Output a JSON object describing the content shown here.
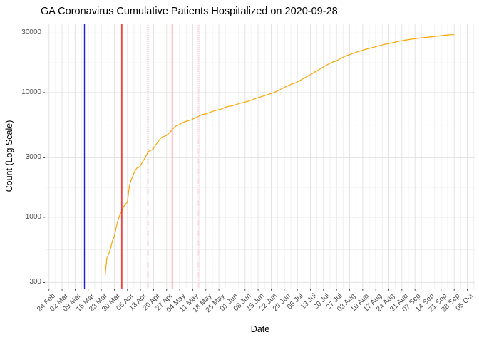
{
  "chart_data": {
    "type": "line",
    "title": "GA Coronavirus Cumulative Patients Hospitalized on 2020-09-28",
    "xlabel": "Date",
    "ylabel": "Count (Log Scale)",
    "y_scale": "log10",
    "grid": true,
    "legend": false,
    "ylim": [
      268,
      35800
    ],
    "xlim": [
      "2020-02-22",
      "2020-10-09"
    ],
    "y_ticks": [
      {
        "label": "300",
        "value": 300
      },
      {
        "label": "1000",
        "value": 1000
      },
      {
        "label": "3000",
        "value": 3000
      },
      {
        "label": "10000",
        "value": 10000
      },
      {
        "label": "30000",
        "value": 30000
      }
    ],
    "y_minor_ticks": [
      548,
      1732,
      5477,
      17321
    ],
    "x_ticks": [
      {
        "label": "24 Feb",
        "date": "2020-02-24"
      },
      {
        "label": "02 Mar",
        "date": "2020-03-02"
      },
      {
        "label": "09 Mar",
        "date": "2020-03-09"
      },
      {
        "label": "16 Mar",
        "date": "2020-03-16"
      },
      {
        "label": "23 Mar",
        "date": "2020-03-23"
      },
      {
        "label": "30 Mar",
        "date": "2020-03-30"
      },
      {
        "label": "06 Apr",
        "date": "2020-04-06"
      },
      {
        "label": "13 Apr",
        "date": "2020-04-13"
      },
      {
        "label": "20 Apr",
        "date": "2020-04-20"
      },
      {
        "label": "27 Apr",
        "date": "2020-04-27"
      },
      {
        "label": "04 May",
        "date": "2020-05-04"
      },
      {
        "label": "11 May",
        "date": "2020-05-11"
      },
      {
        "label": "18 May",
        "date": "2020-05-18"
      },
      {
        "label": "25 May",
        "date": "2020-05-25"
      },
      {
        "label": "01 Jun",
        "date": "2020-06-01"
      },
      {
        "label": "08 Jun",
        "date": "2020-06-08"
      },
      {
        "label": "15 Jun",
        "date": "2020-06-15"
      },
      {
        "label": "22 Jun",
        "date": "2020-06-22"
      },
      {
        "label": "29 Jun",
        "date": "2020-06-29"
      },
      {
        "label": "06 Jul",
        "date": "2020-07-06"
      },
      {
        "label": "13 Jul",
        "date": "2020-07-13"
      },
      {
        "label": "20 Jul",
        "date": "2020-07-20"
      },
      {
        "label": "27 Jul",
        "date": "2020-07-27"
      },
      {
        "label": "03 Aug",
        "date": "2020-08-03"
      },
      {
        "label": "10 Aug",
        "date": "2020-08-10"
      },
      {
        "label": "17 Aug",
        "date": "2020-08-17"
      },
      {
        "label": "24 Aug",
        "date": "2020-08-24"
      },
      {
        "label": "31 Aug",
        "date": "2020-08-31"
      },
      {
        "label": "07 Sep",
        "date": "2020-09-07"
      },
      {
        "label": "14 Sep",
        "date": "2020-09-14"
      },
      {
        "label": "21 Sep",
        "date": "2020-09-21"
      },
      {
        "label": "28 Sep",
        "date": "2020-09-28"
      },
      {
        "label": "05 Oct",
        "date": "2020-10-05"
      }
    ],
    "vlines": [
      {
        "date": "2020-03-14",
        "color": "#2020C8",
        "style": "solid",
        "width": 1.4
      },
      {
        "date": "2020-04-03",
        "color": "#EE1111",
        "style": "solid",
        "width": 1.4
      },
      {
        "date": "2020-04-17",
        "color": "#EE1111",
        "style": "dotted",
        "width": 1.4
      },
      {
        "date": "2020-04-30",
        "color": "#FFB0BE",
        "style": "solid",
        "width": 1.9
      },
      {
        "date": "2020-05-14",
        "color": "#FFD2DB",
        "style": "dotted",
        "width": 1.9
      }
    ],
    "series": [
      {
        "name": "Cumulative Patients Hospitalized",
        "color": "#F8A504",
        "points": [
          [
            "2020-03-25",
            335
          ],
          [
            "2020-03-26",
            470
          ],
          [
            "2020-03-27",
            510
          ],
          [
            "2020-03-28",
            566
          ],
          [
            "2020-03-29",
            650
          ],
          [
            "2020-03-30",
            700
          ],
          [
            "2020-03-31",
            830
          ],
          [
            "2020-04-01",
            950
          ],
          [
            "2020-04-02",
            1050
          ],
          [
            "2020-04-03",
            1120
          ],
          [
            "2020-04-04",
            1220
          ],
          [
            "2020-04-05",
            1270
          ],
          [
            "2020-04-06",
            1330
          ],
          [
            "2020-04-07",
            1770
          ],
          [
            "2020-04-08",
            1990
          ],
          [
            "2020-04-09",
            2160
          ],
          [
            "2020-04-10",
            2350
          ],
          [
            "2020-04-11",
            2480
          ],
          [
            "2020-04-12",
            2510
          ],
          [
            "2020-04-13",
            2590
          ],
          [
            "2020-04-14",
            2770
          ],
          [
            "2020-04-15",
            2920
          ],
          [
            "2020-04-16",
            3110
          ],
          [
            "2020-04-17",
            3320
          ],
          [
            "2020-04-18",
            3420
          ],
          [
            "2020-04-19",
            3460
          ],
          [
            "2020-04-20",
            3550
          ],
          [
            "2020-04-21",
            3780
          ],
          [
            "2020-04-22",
            3960
          ],
          [
            "2020-04-23",
            4150
          ],
          [
            "2020-04-24",
            4330
          ],
          [
            "2020-04-25",
            4430
          ],
          [
            "2020-04-26",
            4470
          ],
          [
            "2020-04-27",
            4540
          ],
          [
            "2020-04-28",
            4680
          ],
          [
            "2020-04-29",
            4840
          ],
          [
            "2020-04-30",
            5060
          ],
          [
            "2020-05-02",
            5390
          ],
          [
            "2020-05-04",
            5550
          ],
          [
            "2020-05-06",
            5770
          ],
          [
            "2020-05-08",
            5920
          ],
          [
            "2020-05-10",
            6010
          ],
          [
            "2020-05-12",
            6240
          ],
          [
            "2020-05-14",
            6440
          ],
          [
            "2020-05-16",
            6660
          ],
          [
            "2020-05-18",
            6740
          ],
          [
            "2020-05-20",
            6920
          ],
          [
            "2020-05-22",
            7110
          ],
          [
            "2020-05-24",
            7250
          ],
          [
            "2020-05-26",
            7350
          ],
          [
            "2020-05-28",
            7580
          ],
          [
            "2020-05-30",
            7750
          ],
          [
            "2020-06-01",
            7820
          ],
          [
            "2020-06-03",
            8000
          ],
          [
            "2020-06-05",
            8180
          ],
          [
            "2020-06-07",
            8320
          ],
          [
            "2020-06-09",
            8470
          ],
          [
            "2020-06-11",
            8670
          ],
          [
            "2020-06-13",
            8900
          ],
          [
            "2020-06-15",
            9100
          ],
          [
            "2020-06-17",
            9300
          ],
          [
            "2020-06-19",
            9500
          ],
          [
            "2020-06-21",
            9700
          ],
          [
            "2020-06-23",
            9950
          ],
          [
            "2020-06-25",
            10250
          ],
          [
            "2020-06-27",
            10600
          ],
          [
            "2020-06-29",
            11000
          ],
          [
            "2020-07-01",
            11350
          ],
          [
            "2020-07-03",
            11700
          ],
          [
            "2020-07-05",
            11950
          ],
          [
            "2020-07-07",
            12400
          ],
          [
            "2020-07-09",
            12900
          ],
          [
            "2020-07-11",
            13400
          ],
          [
            "2020-07-13",
            13900
          ],
          [
            "2020-07-15",
            14500
          ],
          [
            "2020-07-17",
            15100
          ],
          [
            "2020-07-19",
            15700
          ],
          [
            "2020-07-21",
            16400
          ],
          [
            "2020-07-23",
            17000
          ],
          [
            "2020-07-25",
            17600
          ],
          [
            "2020-07-27",
            18000
          ],
          [
            "2020-07-29",
            18700
          ],
          [
            "2020-07-31",
            19400
          ],
          [
            "2020-08-02",
            19900
          ],
          [
            "2020-08-04",
            20400
          ],
          [
            "2020-08-06",
            20900
          ],
          [
            "2020-08-08",
            21400
          ],
          [
            "2020-08-10",
            21900
          ],
          [
            "2020-08-12",
            22300
          ],
          [
            "2020-08-14",
            22700
          ],
          [
            "2020-08-16",
            23100
          ],
          [
            "2020-08-18",
            23600
          ],
          [
            "2020-08-20",
            24000
          ],
          [
            "2020-08-22",
            24400
          ],
          [
            "2020-08-24",
            24700
          ],
          [
            "2020-08-26",
            25100
          ],
          [
            "2020-08-28",
            25500
          ],
          [
            "2020-08-30",
            25900
          ],
          [
            "2020-09-01",
            26200
          ],
          [
            "2020-09-03",
            26500
          ],
          [
            "2020-09-05",
            26800
          ],
          [
            "2020-09-07",
            27000
          ],
          [
            "2020-09-09",
            27300
          ],
          [
            "2020-09-11",
            27500
          ],
          [
            "2020-09-13",
            27700
          ],
          [
            "2020-09-15",
            27900
          ],
          [
            "2020-09-17",
            28100
          ],
          [
            "2020-09-19",
            28400
          ],
          [
            "2020-09-21",
            28600
          ],
          [
            "2020-09-23",
            28800
          ],
          [
            "2020-09-25",
            29000
          ],
          [
            "2020-09-27",
            29100
          ],
          [
            "2020-09-28",
            29200
          ]
        ]
      }
    ],
    "grid_colors": {
      "major": "#E3E3E3",
      "minor": "#F0F0F0"
    }
  }
}
